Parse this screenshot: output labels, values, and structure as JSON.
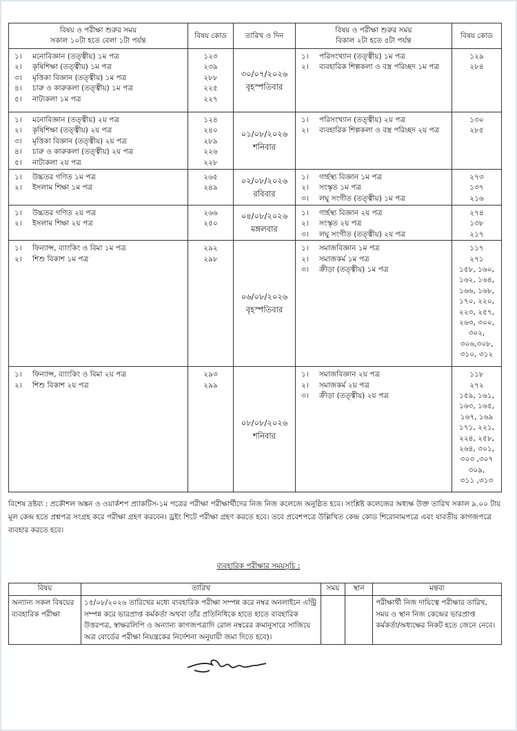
{
  "main_table": {
    "headers": {
      "left_subject": [
        "বিষয় ও পরীক্ষা শুরুর সময়",
        "সকাল ১০টা হতে বেলা ১টা পর্যন্ত"
      ],
      "left_code": "বিষয় কোড",
      "date": "তারিখ ও দিন",
      "right_subject": [
        "বিষয় ও পরীক্ষা শুরুর সময়",
        "বিকাল ২টা হতে ৫টা পর্যন্ত"
      ],
      "right_code": "বিষয় কোড"
    },
    "rows": [
      {
        "date": "৩০/০৭/২০২৬",
        "day": "বৃহস্পতিবার",
        "left": [
          [
            "১।",
            "মনোবিজ্ঞান (তত্ত্বীয়) ১ম পত্র"
          ],
          [
            "২।",
            "কৃষিশিক্ষা (তত্ত্বীয়) ১ম পত্র"
          ],
          [
            "৩।",
            "মৃত্তিকা বিজ্ঞান (তত্ত্বীয়) ১ম পত্র"
          ],
          [
            "৪।",
            "চারু ও কারুকলা  (তত্ত্বীয়) ১ম পত্র"
          ],
          [
            "৫।",
            "নাট্যকলা ১ম পত্র"
          ]
        ],
        "left_codes": [
          "১২৩",
          "২৩৯",
          "২৮৮",
          "২২৫",
          "২২৭"
        ],
        "right": [
          [
            "১।",
            "পরিসংখ্যান (তত্ত্বীয়) ১ম পত্র"
          ],
          [
            "২।",
            "ব্যবহারিক শিল্পকলা ও বস্ত্র পরিচ্ছদ ১ম পত্র"
          ]
        ],
        "right_codes": [
          "১২৯",
          "২৮৪"
        ]
      },
      {
        "date": "০১/০৮/২০২৬",
        "day": "শনিবার",
        "left": [
          [
            "১।",
            "মনোবিজ্ঞান (তত্ত্বীয়) ২য় পত্র"
          ],
          [
            "২।",
            "কৃষিশিক্ষা (তত্ত্বীয়) ২য় পত্র"
          ],
          [
            "৩।",
            "মৃত্তিকা বিজ্ঞান (তত্ত্বীয়) ২য় পত্র"
          ],
          [
            "৪।",
            "চারু ও কারুকলা  (তত্ত্বীয়) ২য় পত্র"
          ],
          [
            "৫।",
            "নাট্যকলা ২য় পত্র"
          ]
        ],
        "left_codes": [
          "১২৪",
          "২৪০",
          "২৮৯",
          "২২৬",
          "২২৮"
        ],
        "right": [
          [
            "১।",
            "পরিসংখ্যান (তত্ত্বীয়) ২য় পত্র"
          ],
          [
            "২।",
            "ব্যবহারিক শিল্পকলা ও বস্ত্র পরিচ্ছদ ২য় পত্র"
          ]
        ],
        "right_codes": [
          "১৩০",
          "২৮৫"
        ]
      },
      {
        "date": "০২/০৮/২০২৬",
        "day": "রবিবার",
        "left": [
          [
            "১।",
            "উচ্চতর গণিত ১ম পত্র"
          ],
          [
            "২।",
            "ইসলাম শিক্ষা ১ম পত্র"
          ]
        ],
        "left_codes": [
          "২৬৫",
          "২৪৯"
        ],
        "right": [
          [
            "১।",
            "গার্হস্থ্য বিজ্ঞান ১ম পত্র"
          ],
          [
            "২।",
            "সংস্কৃত ১ম পত্র"
          ],
          [
            "৩।",
            "লঘু  সংগীত (তত্ত্বীয়) ১ম পত্র"
          ]
        ],
        "right_codes": [
          "২৭৩",
          "১৩৭",
          "২১৬"
        ]
      },
      {
        "date": "০৪/০৮/২০২৬",
        "day": "মঙ্গলবার",
        "left": [
          [
            "১।",
            "উচ্চতর গণিত ২য় পত্র"
          ],
          [
            "২।",
            "ইসলাম শিক্ষা ২য় পত্র"
          ]
        ],
        "left_codes": [
          "২৬৬",
          "২৫০"
        ],
        "right": [
          [
            "১।",
            "গার্হস্থ্য বিজ্ঞান ২য় পত্র"
          ],
          [
            "২।",
            "সংস্কৃত ২য় পত্র"
          ],
          [
            "৩।",
            "লঘু  সংগীত (তত্ত্বীয়) ২য় পত্র"
          ]
        ],
        "right_codes": [
          "২৭৪",
          "১৩৮",
          "২১৭"
        ]
      },
      {
        "date": "০৬/০৮/২০২৬",
        "day": "বৃহস্পতিবার",
        "left": [
          [
            "১।",
            "ফিন্যান্স, ব্যাংকিং ও বিমা ১ম পত্র"
          ],
          [
            "২।",
            "শিশু বিকাশ ১ম পত্র"
          ]
        ],
        "left_codes": [
          "২৯২",
          "২৯৮"
        ],
        "right": [
          [
            "১।",
            "সমাজবিজ্ঞান ১ম পত্র"
          ],
          [
            "২।",
            "সমাজকর্ম ১ম পত্র"
          ],
          [
            "৩।",
            "ক্রীড়া (তত্ত্বীয়) ১ম পত্র"
          ]
        ],
        "right_codes": [
          "১১৭",
          "২৭১",
          "১৫৮, ১৬০,",
          "১৬২, ১৬৪,",
          "১৬৬, ১৬৮,",
          "১৭০, ২২০,",
          "২২৩, ২৫৭,",
          "২৬৩,  ৩০০,",
          "৩০২,",
          "৩০৬,৩০৮,",
          "৩১০, ৩১২"
        ]
      },
      {
        "date": "০৮/০৮/২০২৬",
        "day": "শনিবার",
        "left": [
          [
            "১।",
            "ফিন্যান্স, ব্যাংকিং ও বিমা ২য় পত্র"
          ],
          [
            "২।",
            "শিশু বিকাশ ২য় পত্র"
          ]
        ],
        "left_codes": [
          "২৯৩",
          "২৯৯"
        ],
        "right": [
          [
            "১।",
            "সমাজবিজ্ঞান ২য় পত্র"
          ],
          [
            "২।",
            "সমাজকর্ম ২য় পত্র"
          ],
          [
            "৩।",
            "ক্রীড়া (তত্ত্বীয়) ২য় পত্র"
          ]
        ],
        "right_codes": [
          "১১৮",
          "২৭২",
          "১৫৯, ১৬১,",
          "১৬৩, ১৬৫,",
          "১৬৭, ১৬৯",
          "১৭১, ২২১,",
          "২২৪, ২৫৮,",
          "২৬৪, ৩০১,",
          "৩০৩ ,৩০৭",
          "৩০৯,",
          "৩১১ ,৩১৩"
        ]
      }
    ]
  },
  "special_note": "বিশেষ দ্রষ্টব্য : প্রকৌশল অঙ্কন ও ওয়ার্কশপ প্র্যাকটিস-১ম পত্রের পরীক্ষা পরীক্ষার্থীদের নিজ নিজ কলেজে অনুষ্ঠিত হবে। সংশ্লিষ্ট কলেজের অধ্যক্ষ উক্ত তারিখ সকাল ৯.০০ টায় মূল কেন্দ্র হতে প্রশ্নপত্র সংগ্রহ করে পরীক্ষা গ্রহণ করবেন। ড্রইং শিটে পরীক্ষা গ্রহণ করতে হবে। তবে প্রবেশপত্রে উল্লিখিত কেন্দ্র কোড শিরোনামপত্রে এবং যাবতীয় কাগজপত্রে ব্যবহার করতে হবে।",
  "practical": {
    "title": "ব্যবহারিক পরীক্ষার সময়সূচি :",
    "headers": {
      "subject": "বিষয়",
      "date": "তারিখ",
      "time": "সময়",
      "place": "স্থান",
      "remarks": "মন্তব্য"
    },
    "row": {
      "subject": "অন্যান্য সকল বিষয়ের ব্যবহারিক পরীক্ষা",
      "date": "১৫/০৮/২০২৬ তারিখের মধ্যে ব্যবহারিক পরীক্ষা সম্পন্ন করে  নম্বর অনলাইনে এন্ট্রি সম্পন্ন করে ভারপ্রাপ্ত কর্মকর্তা অথবা তাঁর প্রতিনিধিকে হাতে হাতে ব্যবহারিক উত্তরপত্র, স্বাক্ষরলিপি ও অন্যান্য কাগজপত্রাদি রোল নম্বরের ক্রমানুসারে সাজিয়ে অত্র বোর্ডের পরীক্ষা নিয়ন্ত্রকের নির্দেশনা অনুযায়ী জমা দিতে হবে)।",
      "time": "",
      "place": "",
      "remarks": "পরীক্ষার্থী নিজ দায়িত্বে পরীক্ষার তারিখ, সময় ও স্থান নিজ কেন্দ্রের ভারপ্রাপ্ত কর্মকর্তা/অধ্যক্ষের নিকট হতে জেনে নেবে।"
    }
  },
  "signature": "handwritten-signature"
}
